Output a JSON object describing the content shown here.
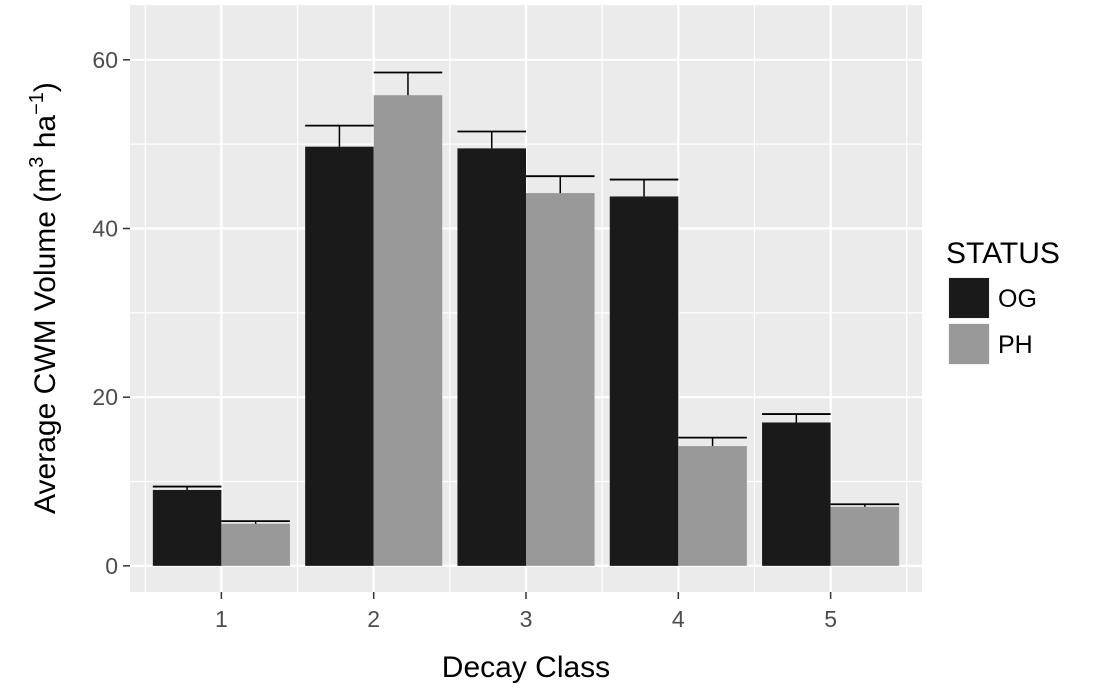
{
  "chart_data": {
    "type": "bar",
    "categories": [
      "1",
      "2",
      "3",
      "4",
      "5"
    ],
    "series": [
      {
        "name": "OG",
        "color": "#1a1a1a",
        "values": [
          9,
          49.7,
          49.5,
          43.8,
          17
        ],
        "error": [
          0.4,
          2.5,
          2.0,
          2.0,
          1.0
        ]
      },
      {
        "name": "PH",
        "color": "#999999",
        "values": [
          5,
          55.8,
          44.2,
          14.2,
          7
        ],
        "error": [
          0.3,
          2.7,
          2.0,
          1.0,
          0.3
        ]
      }
    ],
    "xlabel": "Decay Class",
    "ylabel": {
      "main": "Average CWM Volume (m",
      "sup1": "3",
      "mid": " ha",
      "sup2": "−1",
      "end": ")"
    },
    "yticks": [
      0,
      20,
      40,
      60
    ],
    "ylim": [
      -3.1,
      66.5
    ],
    "grid": true,
    "legend": {
      "title": "STATUS",
      "position": "right"
    },
    "colors": {
      "panel": "#ebebeb",
      "grid": "#ffffff",
      "text": "#4d4d4d"
    }
  }
}
